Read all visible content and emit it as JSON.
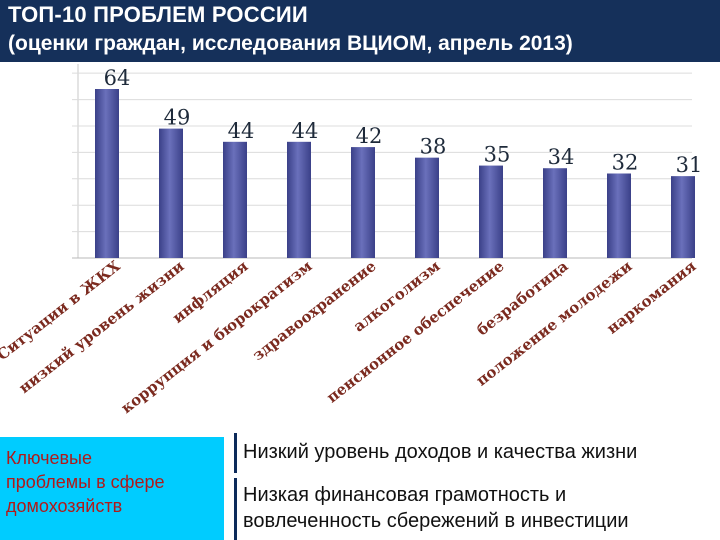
{
  "header": {
    "title": "ТОП-10 ПРОБЛЕМ РОССИИ",
    "subtitle": "(оценки граждан, исследования ВЦИОМ, апрель 2013)"
  },
  "chart_data": {
    "type": "bar",
    "title": "ТОП-10 ПРОБЛЕМ РОССИИ",
    "subtitle": "(оценки граждан, исследования ВЦИОМ, апрель 2013)",
    "categories": [
      "Ситуации в ЖКХ",
      "низкий уровень жизни",
      "инфляция",
      "коррупция и бюрократизм",
      "здравоохранение",
      "алкоголизм",
      "пенсионное обеспечение",
      "безработица",
      "положение молодежи",
      "наркомания"
    ],
    "values": [
      64,
      49,
      44,
      44,
      42,
      38,
      35,
      34,
      32,
      31
    ],
    "ylim": [
      0,
      70
    ],
    "grid": true,
    "colors": {
      "bar": "#4f55a0",
      "highlight_label": "#8b1a1a",
      "default_label": "#1e2a3a",
      "category_text": "#7b2a1f"
    }
  },
  "bottom": {
    "left_box": {
      "lines": [
        "Ключевые",
        "проблемы в сфере",
        "домохозяйств"
      ],
      "bg_color": "#00ccff",
      "text_color": "#b01a1a"
    },
    "right_box1": {
      "text": "Низкий уровень доходов и качества жизни"
    },
    "right_box2": {
      "lines": [
        "Низкая финансовая грамотность и",
        "вовлеченность сбережений в инвестиции"
      ]
    }
  }
}
